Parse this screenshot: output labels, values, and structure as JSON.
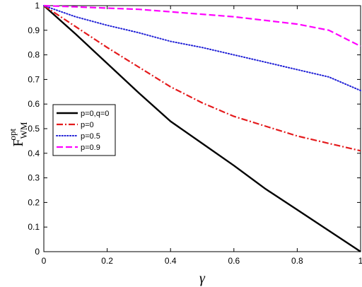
{
  "chart_data": {
    "type": "line",
    "title": "",
    "xlabel": "γ",
    "ylabel": {
      "main": "F",
      "sup": "opt",
      "sub": "WM"
    },
    "xlim": [
      0,
      1
    ],
    "ylim": [
      0,
      1
    ],
    "xticks": [
      0,
      0.2,
      0.4,
      0.6,
      0.8,
      1
    ],
    "yticks": [
      0,
      0.1,
      0.2,
      0.3,
      0.4,
      0.5,
      0.6,
      0.7,
      0.8,
      0.9,
      1
    ],
    "xtick_labels": [
      "0",
      "0.2",
      "0.4",
      "0.6",
      "0.8",
      "1"
    ],
    "ytick_labels": [
      "0",
      "0.1",
      "0.2",
      "0.3",
      "0.4",
      "0.5",
      "0.6",
      "0.7",
      "0.8",
      "0.9",
      "1"
    ],
    "grid": false,
    "legend_position": "middle-left",
    "x": [
      0,
      0.1,
      0.2,
      0.3,
      0.4,
      0.5,
      0.6,
      0.7,
      0.8,
      0.9,
      1
    ],
    "series": [
      {
        "name": "p=0,q=0",
        "color": "#000000",
        "style": "solid",
        "values": [
          1.0,
          0.885,
          0.765,
          0.645,
          0.53,
          0.44,
          0.35,
          0.255,
          0.17,
          0.085,
          0.0
        ]
      },
      {
        "name": "p=0",
        "color": "#e41a1c",
        "style": "dashdot",
        "values": [
          1.0,
          0.915,
          0.83,
          0.75,
          0.67,
          0.605,
          0.55,
          0.51,
          0.47,
          0.44,
          0.41
        ]
      },
      {
        "name": "p=0.5",
        "color": "#1f1fd6",
        "style": "dotted",
        "values": [
          1.0,
          0.955,
          0.92,
          0.89,
          0.855,
          0.83,
          0.8,
          0.77,
          0.74,
          0.71,
          0.655
        ]
      },
      {
        "name": "p=0.9",
        "color": "#ff00ff",
        "style": "dashed",
        "values": [
          1.0,
          0.995,
          0.99,
          0.985,
          0.975,
          0.965,
          0.955,
          0.94,
          0.925,
          0.9,
          0.835
        ]
      }
    ]
  }
}
